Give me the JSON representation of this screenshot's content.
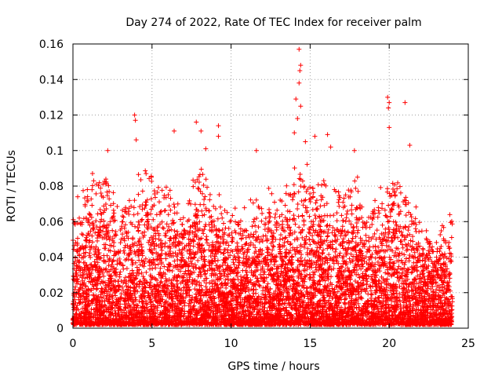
{
  "chart_data": {
    "type": "scatter",
    "title": "Day 274 of 2022, Rate Of TEC Index for receiver palm",
    "xlabel": "GPS time / hours",
    "ylabel": "ROTI / TECUs",
    "xlim": [
      0,
      25
    ],
    "ylim": [
      0,
      0.16
    ],
    "x_ticks": [
      0,
      5,
      10,
      15,
      20,
      25
    ],
    "x_tick_labels": [
      "0",
      "5",
      "10",
      "15",
      "20",
      "25"
    ],
    "y_ticks": [
      0,
      0.02,
      0.04,
      0.06,
      0.08,
      0.1,
      0.12,
      0.14,
      0.16
    ],
    "y_tick_labels": [
      "0",
      "0.02",
      "0.04",
      "0.06",
      "0.08",
      "0.1",
      "0.12",
      "0.14",
      "0.16"
    ],
    "grid": true,
    "marker": "+",
    "color": "#ff0000",
    "data_range_x": [
      0,
      24
    ],
    "envelope": {
      "hours": [
        0,
        1,
        2,
        3,
        4,
        5,
        6,
        7,
        8,
        9,
        10,
        11,
        12,
        13,
        14,
        15,
        16,
        17,
        18,
        19,
        20,
        21,
        22,
        23,
        24
      ],
      "upper_roti": [
        0.065,
        0.09,
        0.095,
        0.075,
        0.09,
        0.09,
        0.085,
        0.07,
        0.1,
        0.08,
        0.07,
        0.075,
        0.08,
        0.075,
        0.095,
        0.095,
        0.085,
        0.08,
        0.085,
        0.075,
        0.095,
        0.09,
        0.06,
        0.06,
        0.065
      ]
    },
    "peaks": [
      {
        "x": 0.3,
        "y": 0.074
      },
      {
        "x": 2.2,
        "y": 0.1
      },
      {
        "x": 3.9,
        "y": 0.12
      },
      {
        "x": 3.95,
        "y": 0.117
      },
      {
        "x": 4.0,
        "y": 0.106
      },
      {
        "x": 6.4,
        "y": 0.111
      },
      {
        "x": 7.8,
        "y": 0.116
      },
      {
        "x": 8.1,
        "y": 0.111
      },
      {
        "x": 8.4,
        "y": 0.101
      },
      {
        "x": 9.2,
        "y": 0.114
      },
      {
        "x": 9.2,
        "y": 0.108
      },
      {
        "x": 11.6,
        "y": 0.1
      },
      {
        "x": 14.0,
        "y": 0.11
      },
      {
        "x": 14.3,
        "y": 0.157
      },
      {
        "x": 14.4,
        "y": 0.148
      },
      {
        "x": 14.35,
        "y": 0.145
      },
      {
        "x": 14.3,
        "y": 0.138
      },
      {
        "x": 14.1,
        "y": 0.129
      },
      {
        "x": 14.4,
        "y": 0.125
      },
      {
        "x": 14.2,
        "y": 0.118
      },
      {
        "x": 14.7,
        "y": 0.105
      },
      {
        "x": 15.3,
        "y": 0.108
      },
      {
        "x": 16.1,
        "y": 0.109
      },
      {
        "x": 16.3,
        "y": 0.102
      },
      {
        "x": 19.9,
        "y": 0.13
      },
      {
        "x": 20.0,
        "y": 0.127
      },
      {
        "x": 19.95,
        "y": 0.124
      },
      {
        "x": 20.0,
        "y": 0.113
      },
      {
        "x": 21.0,
        "y": 0.127
      },
      {
        "x": 21.3,
        "y": 0.103
      },
      {
        "x": 17.8,
        "y": 0.1
      }
    ]
  }
}
